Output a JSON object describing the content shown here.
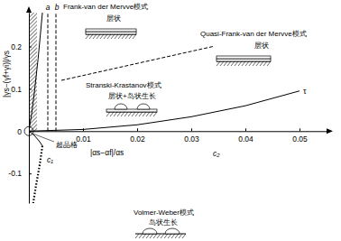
{
  "chart_data": {
    "type": "line",
    "xlabel": "|αs−αf|/αs",
    "ylabel": "|γs−(γf+γi)|/γs",
    "xlim": [
      0,
      0.055
    ],
    "ylim": [
      -0.17,
      0.28
    ],
    "xticks": [
      0.01,
      0.02,
      0.03,
      0.04,
      0.05
    ],
    "yticks": [
      -0.1,
      0,
      0.1,
      0.2
    ],
    "color": "#000000",
    "series": [
      {
        "name": "a",
        "line_style": "dashed",
        "x": [
          0.0035,
          0.0035
        ],
        "values": [
          0,
          0.28
        ]
      },
      {
        "name": "b",
        "line_style": "dashed",
        "x": [
          0.005,
          0.005
        ],
        "values": [
          0,
          0.28
        ]
      },
      {
        "line_style": "solid",
        "x": [
          0,
          0.0005,
          0.001,
          0.0017,
          0.0025
        ],
        "values": [
          0,
          0.04,
          0.09,
          0.17,
          0.28
        ]
      },
      {
        "line_style": "dashed",
        "x": [
          0.006,
          0.034
        ],
        "values": [
          0.12,
          0.2
        ]
      },
      {
        "name": "c₁",
        "line_style": "solid",
        "x": [
          0,
          0.001,
          0.002,
          0.0025
        ],
        "values": [
          0,
          -0.01,
          -0.025,
          -0.035
        ]
      },
      {
        "line_style": "dotted",
        "x": [
          0.0025,
          0.002,
          0.0013,
          0.0008
        ],
        "values": [
          -0.035,
          -0.08,
          -0.13,
          -0.17
        ]
      },
      {
        "name": "c₂",
        "line_style": "solid",
        "x": [
          0,
          0.01,
          0.02,
          0.03,
          0.04,
          0.05
        ],
        "values": [
          0,
          0.004,
          0.015,
          0.034,
          0.06,
          0.095
        ]
      }
    ],
    "shaded_region": {
      "x": [
        0,
        0.0015
      ],
      "y": [
        0,
        0.28
      ]
    },
    "annotations": [
      "Frank-van der Mervve模式",
      "层状",
      "Quasi-Frank-van der Mervve模式",
      "层状",
      "Stranski-Krastanov模式",
      "层状+岛状生长",
      "超晶格",
      "τ",
      "Volmer-Weber模式",
      "岛状生长"
    ]
  }
}
